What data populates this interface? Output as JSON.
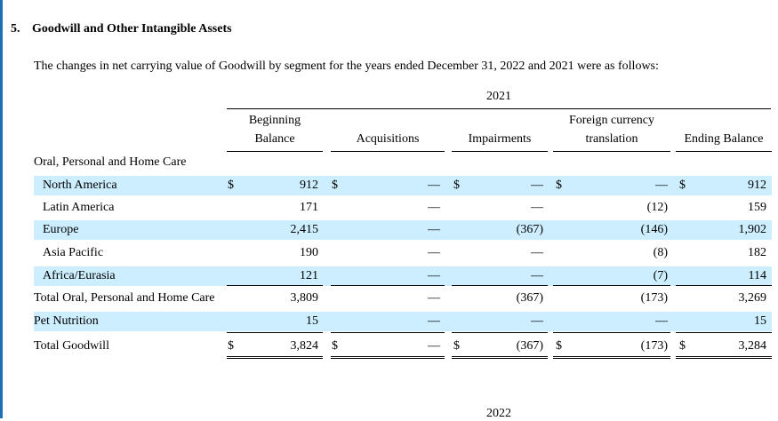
{
  "section": {
    "number": "5.",
    "title": "Goodwill and Other Intangible Assets"
  },
  "intro": "The changes in net carrying value of Goodwill by segment for the years ended December 31, 2022 and 2021 were as follows:",
  "table": {
    "year": "2021",
    "columns": {
      "beginning_line1": "Beginning",
      "beginning_line2": "Balance",
      "acquisitions": "Acquisitions",
      "impairments": "Impairments",
      "fx_line1": "Foreign currency",
      "fx_line2": "translation",
      "ending": "Ending Balance"
    },
    "group_label": "Oral, Personal and Home Care",
    "currency": "$",
    "rows": [
      {
        "label": "North America",
        "beginning": "912",
        "acquisitions": "—",
        "impairments": "—",
        "fx": "—",
        "ending": "912"
      },
      {
        "label": "Latin America",
        "beginning": "171",
        "acquisitions": "—",
        "impairments": "—",
        "fx": "(12)",
        "ending": "159"
      },
      {
        "label": "Europe",
        "beginning": "2,415",
        "acquisitions": "—",
        "impairments": "(367)",
        "fx": "(146)",
        "ending": "1,902"
      },
      {
        "label": "Asia Pacific",
        "beginning": "190",
        "acquisitions": "—",
        "impairments": "—",
        "fx": "(8)",
        "ending": "182"
      },
      {
        "label": "Africa/Eurasia",
        "beginning": "121",
        "acquisitions": "—",
        "impairments": "—",
        "fx": "(7)",
        "ending": "114"
      },
      {
        "label": "Total Oral, Personal and Home Care",
        "beginning": "3,809",
        "acquisitions": "—",
        "impairments": "(367)",
        "fx": "(173)",
        "ending": "3,269"
      },
      {
        "label": "Pet Nutrition",
        "beginning": "15",
        "acquisitions": "—",
        "impairments": "—",
        "fx": "—",
        "ending": "15"
      },
      {
        "label": "Total Goodwill",
        "beginning": "3,824",
        "acquisitions": "—",
        "impairments": "(367)",
        "fx": "(173)",
        "ending": "3,284"
      }
    ],
    "next_year": "2022"
  }
}
